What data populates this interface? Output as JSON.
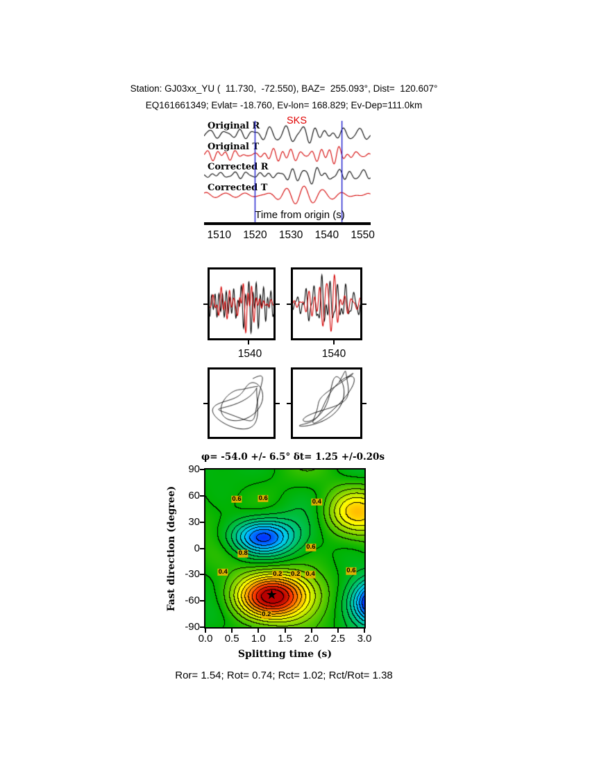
{
  "header": {
    "line1": "Station: GJ03xx_YU (  11.730,  -72.550), BAZ=  255.093°, Dist=  120.607°",
    "line2": "EQ161661349; Evlat= -18.760, Ev-lon= 168.829; Ev-Dep=111.0km"
  },
  "footer": {
    "stats": "Ror= 1.54; Rot= 0.74; Rct= 1.02; Rct/Rot= 1.38"
  },
  "icons": {
    "star": "★"
  },
  "chart_data": [
    {
      "type": "line",
      "name": "waveform-traces",
      "phase_label": "SKS",
      "xlabel": "Time from origin (s)",
      "x_range": [
        1506,
        1552
      ],
      "xticks": [
        1510,
        1520,
        1530,
        1540,
        1550
      ],
      "traces": [
        {
          "name": "Original R",
          "color": "#000000"
        },
        {
          "name": "Original T",
          "color": "#d40000"
        },
        {
          "name": "Corrected R",
          "color": "#000000"
        },
        {
          "name": "Corrected T",
          "color": "#d40000"
        }
      ],
      "window_lines": [
        1520.0,
        1544.2
      ],
      "window_color": "#1818cc"
    },
    {
      "type": "line",
      "name": "windowed-waveforms",
      "boxes": [
        {
          "name": "original-window",
          "label": "1540"
        },
        {
          "name": "corrected-window",
          "label": "1540"
        }
      ]
    },
    {
      "type": "scatter",
      "name": "particle-motion",
      "boxes": [
        {
          "name": "original-particle-motion"
        },
        {
          "name": "corrected-particle-motion"
        }
      ]
    },
    {
      "type": "heatmap",
      "name": "splitting-error-surface",
      "title": "φ= -54.0 +/- 6.5° δt= 1.25 +/-0.20s",
      "xlabel": "Splitting time (s)",
      "ylabel": "Fast direction (degree)",
      "xlim": [
        0,
        3
      ],
      "ylim": [
        -90,
        90
      ],
      "xticks": [
        "0.0",
        "0.5",
        "1.0",
        "1.5",
        "2.0",
        "2.5",
        "3.0"
      ],
      "yticks": [
        90,
        60,
        30,
        0,
        -30,
        -60,
        -90
      ],
      "best": {
        "fast_direction_deg": -54.0,
        "fast_direction_err_deg": 6.5,
        "delay_time_s": 1.25,
        "delay_time_err_s": 0.2
      },
      "star": {
        "x": 1.25,
        "y": -54
      },
      "contour_interval": 0.05,
      "colormap": "jet",
      "features": [
        {
          "x": 1.25,
          "y": -55,
          "sx": 0.75,
          "sy": 26,
          "amp": 0.5
        },
        {
          "x": 1.05,
          "y": 13,
          "sx": 0.6,
          "sy": 20,
          "amp": -0.35
        },
        {
          "x": 3.35,
          "y": -62,
          "sx": 0.55,
          "sy": 25,
          "amp": -0.55
        },
        {
          "x": 2.85,
          "y": 42,
          "sx": 0.6,
          "sy": 26,
          "amp": 0.24
        }
      ],
      "contour_labels": [
        {
          "text": "0.6",
          "x": 0.59,
          "y": 56
        },
        {
          "text": "0.6",
          "x": 1.09,
          "y": 57
        },
        {
          "text": "0.4",
          "x": 2.1,
          "y": 53
        },
        {
          "text": "0.8",
          "x": 0.71,
          "y": -6
        },
        {
          "text": "0.6",
          "x": 1.99,
          "y": 1
        },
        {
          "text": "0.4",
          "x": 0.33,
          "y": -27
        },
        {
          "text": "0.2",
          "x": 1.36,
          "y": -30
        },
        {
          "text": "0.2",
          "x": 1.7,
          "y": -30
        },
        {
          "text": "0.4",
          "x": 1.98,
          "y": -30
        },
        {
          "text": "0.6",
          "x": 2.75,
          "y": -26
        },
        {
          "text": "0.2",
          "x": 1.15,
          "y": -76
        }
      ]
    }
  ]
}
